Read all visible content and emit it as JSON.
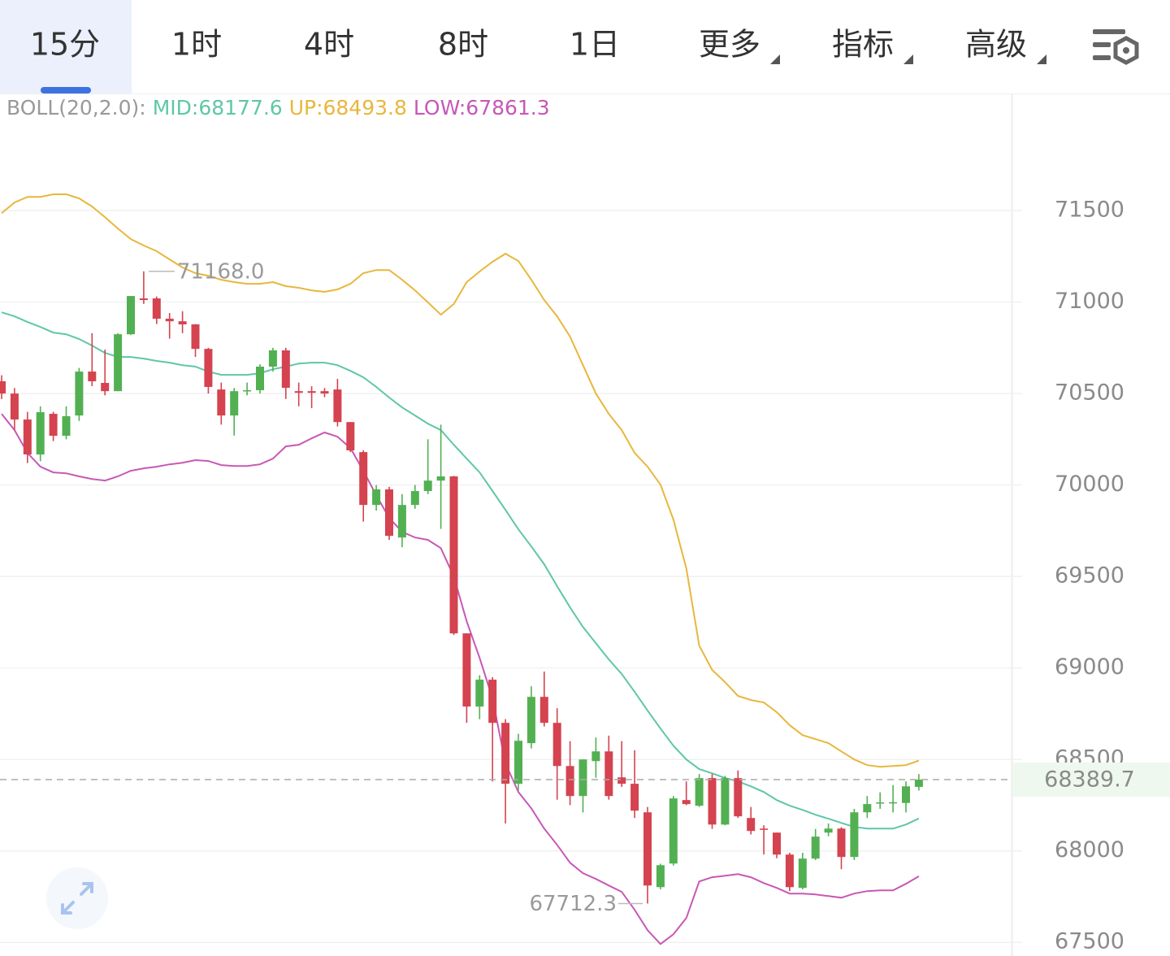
{
  "tabs": [
    "15分",
    "1时",
    "4时",
    "8时",
    "1日",
    "更多",
    "指标",
    "高级"
  ],
  "chart_data": {
    "type": "candlestick",
    "indicator": "BOLL(20,2.0):",
    "up_color": "#52b052",
    "down_color": "#d4434f",
    "open": [
      70567,
      70500,
      70358,
      70167,
      70389,
      70269,
      70380,
      70620,
      70558,
      70513,
      70824,
      71020,
      71020,
      70909,
      70895,
      70878,
      70744,
      70522,
      70380,
      70513,
      70518,
      70647,
      70736,
      70513,
      70513,
      70513,
      70522,
      70344,
      70180,
      69891,
      69976,
      69713,
      69891,
      69967,
      70024,
      70047,
      69189,
      68789,
      68936,
      68700,
      68367,
      68589,
      68842,
      68700,
      68464,
      68300,
      68491,
      68544,
      68402,
      68367,
      68211,
      67802,
      67931,
      68278,
      68247,
      68398,
      68144,
      68398,
      68180,
      68122,
      68100,
      67980,
      67798,
      67958,
      68100,
      68122,
      67967,
      68211,
      68262,
      68262,
      68262,
      68350
    ],
    "high": [
      70600,
      70530,
      70400,
      70430,
      70400,
      70430,
      70640,
      70830,
      70740,
      70830,
      71033,
      71168,
      71030,
      70940,
      70950,
      70880,
      70750,
      70560,
      70530,
      70560,
      70660,
      70750,
      70750,
      70560,
      70540,
      70530,
      70580,
      70344,
      70190,
      70000,
      69990,
      69950,
      70000,
      70250,
      70330,
      70050,
      69190,
      68960,
      68950,
      68720,
      68640,
      68900,
      68980,
      68780,
      68600,
      68500,
      68620,
      68630,
      68600,
      68550,
      68240,
      67930,
      68300,
      68380,
      68420,
      68420,
      68410,
      68440,
      68240,
      68140,
      68100,
      67990,
      67990,
      68120,
      68150,
      68130,
      68230,
      68300,
      68320,
      68360,
      68380,
      68420
    ],
    "low": [
      70470,
      70300,
      70120,
      70130,
      70240,
      70250,
      70350,
      70540,
      70490,
      70513,
      70820,
      70990,
      70880,
      70800,
      70830,
      70700,
      70500,
      70330,
      70270,
      70490,
      70500,
      70620,
      70470,
      70430,
      70420,
      70480,
      70320,
      70180,
      69800,
      69860,
      69700,
      69660,
      69870,
      69950,
      69760,
      69180,
      68700,
      68720,
      68380,
      68150,
      68330,
      68560,
      68680,
      68280,
      68250,
      68210,
      68400,
      68280,
      68350,
      68180,
      67712.3,
      67790,
      67920,
      68250,
      68240,
      68120,
      68140,
      68180,
      68090,
      67980,
      67960,
      67780,
      67790,
      67950,
      68080,
      67900,
      67950,
      68180,
      68230,
      68210,
      68210,
      68330
    ],
    "close": [
      70500,
      70358,
      70167,
      70398,
      70269,
      70376,
      70620,
      70567,
      70513,
      70824,
      71033,
      71011,
      70909,
      70895,
      70878,
      70744,
      70536,
      70380,
      70513,
      70518,
      70647,
      70736,
      70531,
      70504,
      70504,
      70500,
      70344,
      70189,
      69891,
      69976,
      69722,
      69891,
      69967,
      70024,
      70047,
      69189,
      68789,
      68936,
      68700,
      68367,
      68602,
      68842,
      68700,
      68464,
      68300,
      68500,
      68544,
      68300,
      68367,
      68220,
      67811,
      67922,
      68287,
      68256,
      68398,
      68144,
      68398,
      68189,
      68109,
      68115,
      67980,
      67802,
      67958,
      68078,
      68122,
      67967,
      68211,
      68256,
      68265,
      68266,
      68353,
      68389.7
    ],
    "bands": [
      {
        "legend": "MID:68177.6",
        "color": "#5ec7a7",
        "values": [
          70944,
          70922,
          70891,
          70864,
          70833,
          70824,
          70798,
          70762,
          70722,
          70700,
          70700,
          70691,
          70678,
          70669,
          70655,
          70647,
          70620,
          70602,
          70602,
          70602,
          70611,
          70633,
          70647,
          70664,
          70669,
          70669,
          70655,
          70624,
          70589,
          70536,
          70478,
          70424,
          70380,
          70335,
          70300,
          70220,
          70144,
          70069,
          69967,
          69864,
          69758,
          69664,
          69567,
          69447,
          69331,
          69224,
          69135,
          69047,
          68967,
          68869,
          68767,
          68669,
          68575,
          68500,
          68447,
          68424,
          68398,
          68380,
          68353,
          68322,
          68278,
          68247,
          68224,
          68198,
          68176,
          68153,
          68131,
          68122,
          68122,
          68122,
          68144,
          68177.6
        ]
      },
      {
        "legend": "UP:68493.8",
        "color": "#e8b73c",
        "values": [
          71486,
          71544,
          71575,
          71575,
          71589,
          71589,
          71567,
          71522,
          71464,
          71402,
          71344,
          71309,
          71278,
          71233,
          71189,
          71158,
          71144,
          71122,
          71109,
          71100,
          71100,
          71109,
          71087,
          71078,
          71064,
          71056,
          71069,
          71100,
          71158,
          71175,
          71175,
          71122,
          71064,
          70998,
          70931,
          70989,
          71109,
          71167,
          71220,
          71264,
          71224,
          71122,
          71011,
          70922,
          70811,
          70655,
          70500,
          70389,
          70300,
          70175,
          70100,
          70002,
          69811,
          69544,
          69122,
          68989,
          68922,
          68847,
          68825,
          68811,
          68758,
          68687,
          68633,
          68611,
          68589,
          68544,
          68500,
          68469,
          68460,
          68464,
          68469,
          68493.8
        ]
      },
      {
        "legend": "LOW:67861.3",
        "color": "#c758b6",
        "values": [
          70389,
          70300,
          70175,
          70100,
          70069,
          70064,
          70047,
          70033,
          70024,
          70047,
          70078,
          70091,
          70100,
          70113,
          70122,
          70136,
          70131,
          70109,
          70104,
          70104,
          70113,
          70144,
          70211,
          70220,
          70255,
          70287,
          70264,
          70202,
          70078,
          69944,
          69820,
          69744,
          69713,
          69700,
          69655,
          69500,
          69255,
          69055,
          68833,
          68478,
          68322,
          68233,
          68122,
          68033,
          67935,
          67878,
          67847,
          67811,
          67776,
          67678,
          67567,
          67491,
          67544,
          67633,
          67833,
          67856,
          67864,
          67873,
          67856,
          67824,
          67798,
          67767,
          67767,
          67762,
          67753,
          67744,
          67767,
          67780,
          67784,
          67784,
          67820,
          67861.3
        ]
      }
    ],
    "ylim": [
      67430,
      72140
    ],
    "yticks": [
      67500,
      68000,
      68500,
      69000,
      69500,
      70000,
      70500,
      71000,
      71500
    ],
    "grid": true,
    "last_price": 68389.7,
    "high_mark": {
      "index": 11,
      "value": 71168.0,
      "label": "71168.0"
    },
    "low_mark": {
      "index": 50,
      "value": 67712.3,
      "label": "67712.3"
    }
  }
}
